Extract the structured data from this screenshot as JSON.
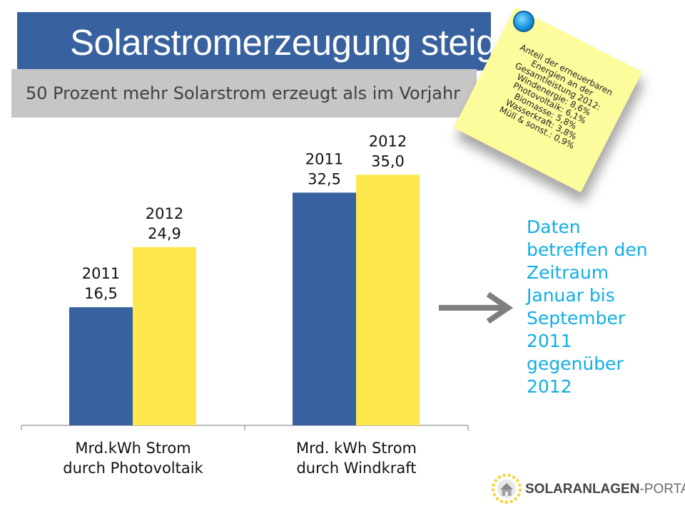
{
  "slide": {
    "title": "Solarstromerzeugung steigt",
    "subtitle": "50 Prozent mehr Solarstrom erzeugt als im Vorjahr"
  },
  "sticky_note": {
    "lines": [
      "Anteil der erneuerbaren",
      "Energien an der",
      "Gesamtleistung 2012:",
      "Windenergie: 8,6%",
      "Photovoltaik: 6,1%",
      "Biomasse: 5,8%",
      "Wasserkraft: 3,8%",
      "Müll & sonst.: 0,9%"
    ],
    "color": "#fcfc9c"
  },
  "chart_data": {
    "type": "bar",
    "categories": [
      [
        "Mrd.kWh Strom",
        "durch Photovoltaik"
      ],
      [
        "Mrd. kWh Strom",
        "durch Windkraft"
      ]
    ],
    "series": [
      {
        "label": "2011",
        "values": [
          16.5,
          32.5
        ],
        "value_labels": [
          "16,5",
          "32,5"
        ],
        "color": "#38629f"
      },
      {
        "label": "2012",
        "values": [
          24.9,
          35.0
        ],
        "value_labels": [
          "24,9",
          "35,0"
        ],
        "color": "#fde74c"
      }
    ],
    "ylim": [
      0,
      48
    ],
    "grid": false,
    "legend": "none"
  },
  "info_box": {
    "lines": [
      "Daten",
      "betreffen den",
      "Zeitraum",
      "Januar bis",
      "September",
      "2011",
      "gegenüber",
      "2012"
    ],
    "color": "#12aee6"
  },
  "arrow": {
    "icon": "right-arrow-icon",
    "color": "#7f7f7f"
  },
  "logo": {
    "brand": "SOLARANLAGEN",
    "suffix": "-PORTAL",
    "icon": "sun-house-icon"
  }
}
